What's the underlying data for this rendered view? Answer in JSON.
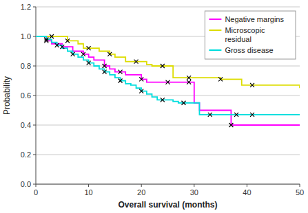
{
  "chart_data": {
    "type": "step",
    "title": "",
    "xlabel": "Overall survival (months)",
    "ylabel": "Probability",
    "xlim": [
      0,
      50
    ],
    "ylim": [
      0,
      1.2
    ],
    "xticks": [
      0,
      10,
      20,
      30,
      40,
      50
    ],
    "yticks": [
      {
        "value": 0,
        "label": "0.0"
      },
      0.2,
      0.4,
      0.6,
      0.8,
      {
        "value": 1.0,
        "label": "1.0"
      },
      1.2
    ],
    "grid": true,
    "legend": "upper right",
    "series": [
      {
        "name": "Negative margins",
        "color": "#ff00ff",
        "x": [
          0,
          2,
          3,
          5,
          7,
          9,
          10,
          11,
          13,
          14,
          15,
          16,
          17,
          18,
          20,
          21,
          22,
          23,
          25,
          27,
          29,
          30,
          31,
          32,
          37,
          38,
          50
        ],
        "values": [
          1.0,
          0.97,
          0.95,
          0.93,
          0.9,
          0.88,
          0.86,
          0.84,
          0.8,
          0.78,
          0.76,
          0.76,
          0.74,
          0.74,
          0.71,
          0.69,
          0.69,
          0.69,
          0.69,
          0.69,
          0.69,
          0.55,
          0.5,
          0.5,
          0.4,
          0.4,
          0.4
        ]
      },
      {
        "name": "Microscopic\nresidual",
        "color": "#dddd00",
        "x": [
          0,
          2,
          3,
          5,
          6,
          8,
          9,
          10,
          12,
          14,
          15,
          17,
          19,
          21,
          22,
          23,
          24,
          26,
          28,
          29,
          30,
          33,
          35,
          36,
          39,
          41,
          50
        ],
        "values": [
          1.0,
          1.0,
          1.0,
          1.0,
          0.97,
          0.95,
          0.92,
          0.92,
          0.9,
          0.88,
          0.86,
          0.83,
          0.83,
          0.81,
          0.8,
          0.8,
          0.8,
          0.72,
          0.72,
          0.72,
          0.72,
          0.72,
          0.71,
          0.71,
          0.67,
          0.67,
          0.65
        ]
      },
      {
        "name": "Gross disease",
        "color": "#00dddd",
        "x": [
          0,
          1,
          2,
          3,
          4,
          5,
          6,
          7,
          8,
          9,
          10,
          11,
          12,
          13,
          14,
          15,
          16,
          17,
          18,
          19,
          20,
          21,
          22,
          23,
          24,
          25,
          26,
          27,
          28,
          29,
          30,
          31,
          33,
          35,
          36,
          38,
          40,
          41,
          50
        ],
        "values": [
          1.0,
          1.0,
          0.98,
          0.96,
          0.94,
          0.92,
          0.9,
          0.88,
          0.86,
          0.84,
          0.82,
          0.8,
          0.78,
          0.76,
          0.74,
          0.72,
          0.7,
          0.68,
          0.67,
          0.65,
          0.63,
          0.61,
          0.59,
          0.57,
          0.57,
          0.57,
          0.56,
          0.55,
          0.55,
          0.55,
          0.55,
          0.47,
          0.47,
          0.47,
          0.47,
          0.47,
          0.47,
          0.47,
          0.47
        ]
      },
      {
        "type": "scatter",
        "marker": "x",
        "color": "#000000",
        "x": [
          2,
          5,
          9,
          13,
          16,
          20,
          25,
          29,
          37
        ],
        "values": [
          0.97,
          0.93,
          0.88,
          0.8,
          0.76,
          0.71,
          0.69,
          0.69,
          0.4
        ]
      },
      {
        "type": "scatter",
        "marker": "x",
        "color": "#000000",
        "x": [
          3,
          6,
          10,
          14,
          19,
          24,
          29,
          35,
          41
        ],
        "values": [
          1.0,
          0.97,
          0.92,
          0.88,
          0.83,
          0.8,
          0.72,
          0.71,
          0.67
        ]
      },
      {
        "type": "scatter",
        "marker": "x",
        "color": "#000000",
        "x": [
          2,
          4,
          7,
          10,
          13,
          16,
          20,
          24,
          28,
          33,
          38,
          41
        ],
        "values": [
          0.98,
          0.94,
          0.88,
          0.82,
          0.76,
          0.7,
          0.63,
          0.57,
          0.55,
          0.47,
          0.47,
          0.47
        ]
      }
    ]
  }
}
